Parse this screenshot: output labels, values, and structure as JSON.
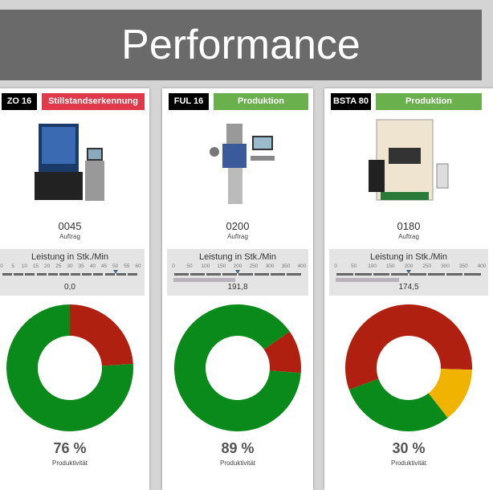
{
  "title": "Performance",
  "colors": {
    "green": "#0a8a1a",
    "red": "#b02010",
    "yellow": "#f0b400",
    "status_stop": "#e0394a",
    "status_prod": "#6ab04c"
  },
  "machines": [
    {
      "name": "ZO 16",
      "status": "Stillstandserkennung",
      "status_color": "#e0394a",
      "order": "0045",
      "order_label": "Auftrag",
      "perf_title": "Leistung in Stk./Min",
      "ticks": [
        "0",
        "5",
        "10",
        "15",
        "20",
        "25",
        "30",
        "35",
        "40",
        "45",
        "50",
        "55",
        "60"
      ],
      "scale_max": 60,
      "target": 50,
      "value": "0,0",
      "value_num": 0,
      "productivity": "76 %",
      "productivity_label": "Produktivität",
      "segments": [
        {
          "color": "red",
          "fraction": 0.24
        },
        {
          "color": "green",
          "fraction": 0.76
        }
      ],
      "start_deg": 0
    },
    {
      "name": "FUL 16",
      "status": "Produktion",
      "status_color": "#6ab04c",
      "order": "0200",
      "order_label": "Auftrag",
      "perf_title": "Leistung in Stk./Min",
      "ticks": [
        "0",
        "50",
        "100",
        "150",
        "200",
        "250",
        "300",
        "350",
        "400"
      ],
      "scale_max": 400,
      "target": 200,
      "value": "191,8",
      "value_num": 191.8,
      "productivity": "89 %",
      "productivity_label": "Produktivität",
      "segments": [
        {
          "color": "red",
          "fraction": 0.11
        },
        {
          "color": "green",
          "fraction": 0.89
        }
      ],
      "start_deg": 55
    },
    {
      "name": "BSTA 80",
      "status": "Produktion",
      "status_color": "#6ab04c",
      "order": "0180",
      "order_label": "Auftrag",
      "perf_title": "Leistung in Stk./Min",
      "ticks": [
        "0",
        "50",
        "100",
        "150",
        "200",
        "250",
        "300",
        "350",
        "400"
      ],
      "scale_max": 400,
      "target": 200,
      "value": "174,5",
      "value_num": 174.5,
      "productivity": "30 %",
      "productivity_label": "Produktivität",
      "segments": [
        {
          "color": "red",
          "fraction": 0.56
        },
        {
          "color": "yellow",
          "fraction": 0.14
        },
        {
          "color": "green",
          "fraction": 0.3
        }
      ],
      "start_deg": 250
    }
  ]
}
